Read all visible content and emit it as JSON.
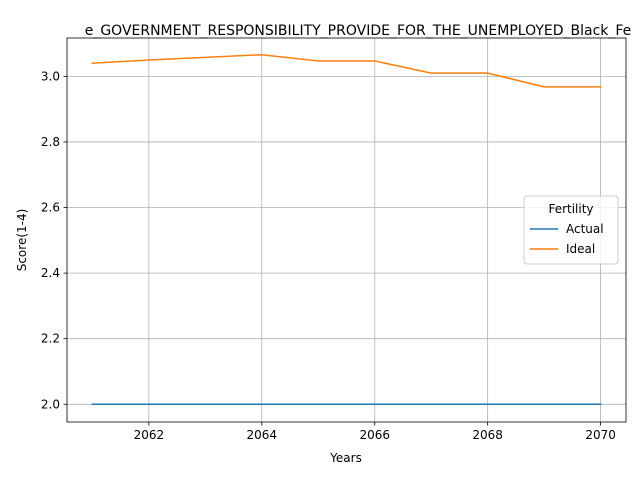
{
  "chart_data": {
    "type": "line",
    "title": "e_GOVERNMENT_RESPONSIBILITY_PROVIDE_FOR_THE_UNEMPLOYED_Black_Fe",
    "xlabel": "Years",
    "ylabel": "Score(1-4)",
    "x": [
      2061,
      2062,
      2063,
      2064,
      2065,
      2066,
      2067,
      2068,
      2069,
      2070
    ],
    "xlim": [
      2060.55,
      2070.45
    ],
    "ylim": [
      1.946,
      3.117
    ],
    "xticks": [
      2062,
      2064,
      2066,
      2068,
      2070
    ],
    "yticks": [
      2.0,
      2.2,
      2.4,
      2.6,
      2.8,
      3.0
    ],
    "grid": true,
    "legend": {
      "title": "Fertility",
      "placement": "center-right"
    },
    "series": [
      {
        "name": "Actual",
        "color": "#1f77b4",
        "values": [
          2.0,
          2.0,
          2.0,
          2.0,
          2.0,
          2.0,
          2.0,
          2.0,
          2.0,
          2.0
        ]
      },
      {
        "name": "Ideal",
        "color": "#ff7f0e",
        "values": [
          3.04,
          3.05,
          3.058,
          3.066,
          3.047,
          3.047,
          3.01,
          3.01,
          2.968,
          2.968
        ]
      }
    ]
  }
}
